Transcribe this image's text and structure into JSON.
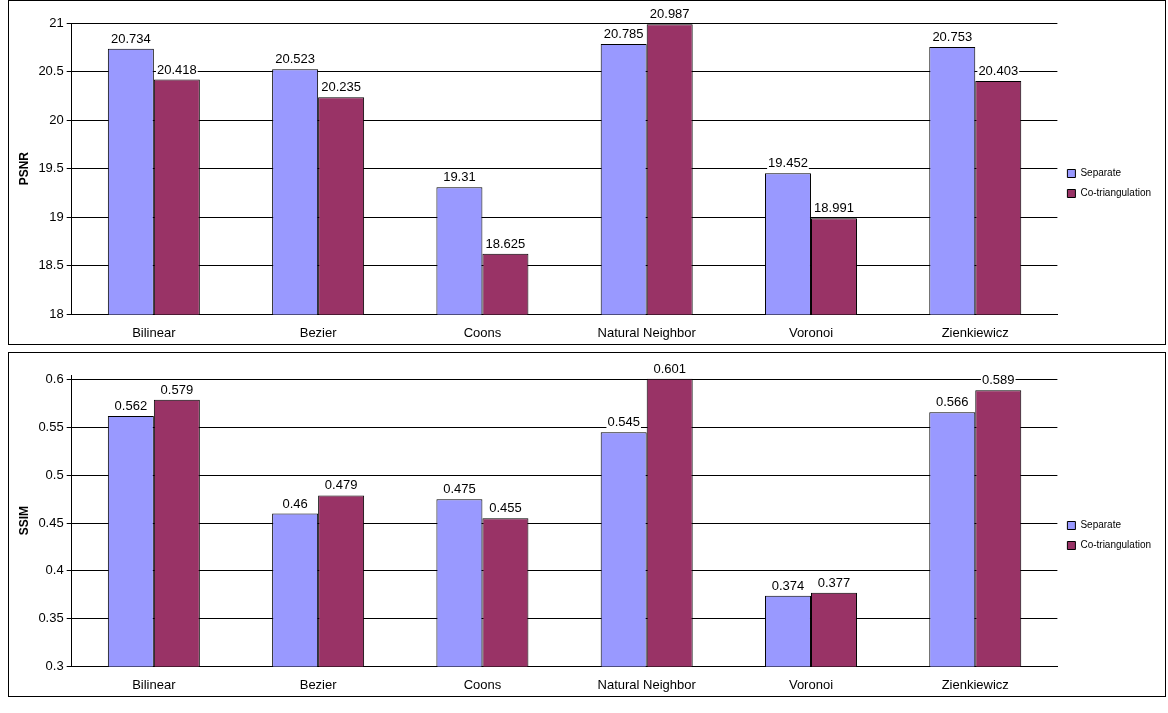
{
  "chart_data": [
    {
      "type": "bar",
      "ylabel": "PSNR",
      "categories": [
        "Bilinear",
        "Bezier",
        "Coons",
        "Natural Neighbor",
        "Voronoi",
        "Zienkiewicz"
      ],
      "series": [
        {
          "name": "Separate",
          "color": "#9999ff",
          "values": [
            20.734,
            20.523,
            19.31,
            20.785,
            19.452,
            20.753
          ]
        },
        {
          "name": "Co-triangulation",
          "color": "#993366",
          "values": [
            20.418,
            20.235,
            18.625,
            20.987,
            18.991,
            20.403
          ]
        }
      ],
      "ylim": [
        18,
        21
      ],
      "yticks": [
        18,
        18.5,
        19,
        19.5,
        20,
        20.5,
        21
      ],
      "grid": "y",
      "legend": "right",
      "data_labels": true
    },
    {
      "type": "bar",
      "ylabel": "SSIM",
      "categories": [
        "Bilinear",
        "Bezier",
        "Coons",
        "Natural Neighbor",
        "Voronoi",
        "Zienkiewicz"
      ],
      "series": [
        {
          "name": "Separate",
          "color": "#9999ff",
          "values": [
            0.562,
            0.46,
            0.475,
            0.545,
            0.374,
            0.566
          ]
        },
        {
          "name": "Co-triangulation",
          "color": "#993366",
          "values": [
            0.579,
            0.479,
            0.455,
            0.601,
            0.377,
            0.589
          ]
        }
      ],
      "ylim": [
        0.3,
        0.605
      ],
      "yticks": [
        0.3,
        0.35,
        0.4,
        0.45,
        0.5,
        0.55,
        0.6
      ],
      "grid": "y",
      "legend": "right",
      "data_labels": true
    }
  ]
}
